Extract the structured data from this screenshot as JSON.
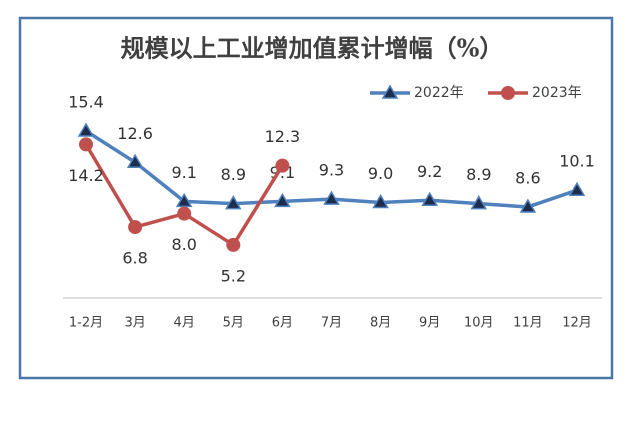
{
  "chart_data": {
    "type": "line",
    "title": "规模以上工业增加值累计增幅（%）",
    "categories": [
      "1-2月",
      "3月",
      "4月",
      "5月",
      "6月",
      "7月",
      "8月",
      "9月",
      "10月",
      "11月",
      "12月"
    ],
    "series": [
      {
        "name": "2022年",
        "color": "#4f81bd",
        "marker": "triangle",
        "values": [
          15.4,
          12.6,
          9.1,
          8.9,
          9.1,
          9.3,
          9.0,
          9.2,
          8.9,
          8.6,
          10.1
        ],
        "value_labels": [
          "15.4",
          "12.6",
          "9.1",
          "8.9",
          "9.1",
          "9.3",
          "9.0",
          "9.2",
          "8.9",
          "8.6",
          "10.1"
        ]
      },
      {
        "name": "2023年",
        "color": "#c0504d",
        "marker": "circle",
        "values": [
          14.2,
          6.8,
          8.0,
          5.2,
          12.3,
          null,
          null,
          null,
          null,
          null,
          null
        ],
        "value_labels": [
          "14.2",
          "6.8",
          "8.0",
          "5.2",
          "12.3",
          null,
          null,
          null,
          null,
          null,
          null
        ]
      }
    ],
    "ylim": [
      0,
      18
    ],
    "legend": "top-right"
  }
}
